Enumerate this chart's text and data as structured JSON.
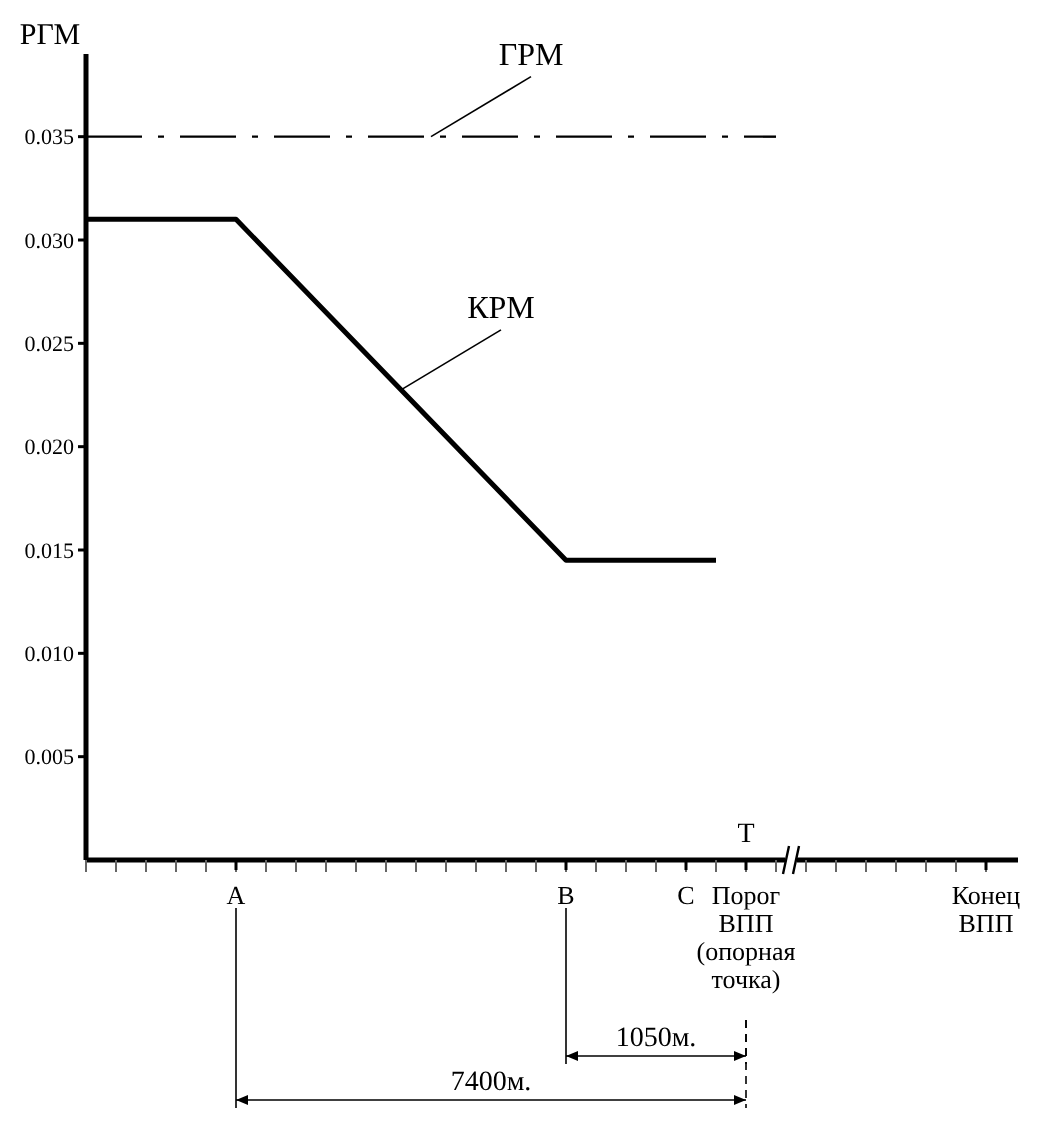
{
  "chart_data": {
    "type": "line",
    "ylabel": "РГМ",
    "categories": [
      null,
      null,
      null,
      null,
      null,
      "A",
      null,
      null,
      null,
      null,
      null,
      null,
      null,
      null,
      null,
      null,
      "B",
      null,
      null,
      null,
      "C",
      null,
      "Порог ВПП\n(опорная\nточка)",
      null,
      null,
      null,
      null,
      null,
      null,
      null,
      "Конец\nВПП"
    ],
    "series": [
      {
        "name": "ГРМ",
        "color": "#000000",
        "line_style": "dashed",
        "values": [
          0.035,
          null,
          null,
          null,
          null,
          null,
          null,
          null,
          null,
          null,
          null,
          null,
          null,
          null,
          null,
          null,
          null,
          null,
          null,
          null,
          null,
          null,
          null,
          0.035,
          null,
          null,
          null,
          null,
          null,
          null,
          null
        ]
      },
      {
        "name": "КРМ",
        "color": "#000000",
        "line_style": "solid",
        "values": [
          0.031,
          null,
          null,
          null,
          null,
          0.031,
          null,
          null,
          null,
          null,
          null,
          null,
          null,
          null,
          null,
          null,
          0.0145,
          null,
          null,
          null,
          null,
          0.0145,
          null,
          null,
          null,
          null,
          null,
          null,
          null,
          null,
          null
        ]
      }
    ],
    "ylim": [
      0,
      0.039
    ],
    "yticks": [
      0.005,
      {
        "value": 0.01,
        "label": "0.010"
      },
      0.015,
      {
        "value": 0.02,
        "label": "0.020"
      },
      0.025,
      {
        "value": 0.03,
        "label": "0.030"
      },
      0.035
    ],
    "annotations": [
      "T",
      "1050м.",
      "7400м."
    ],
    "grid": false,
    "legend": false,
    "marker": "none"
  }
}
